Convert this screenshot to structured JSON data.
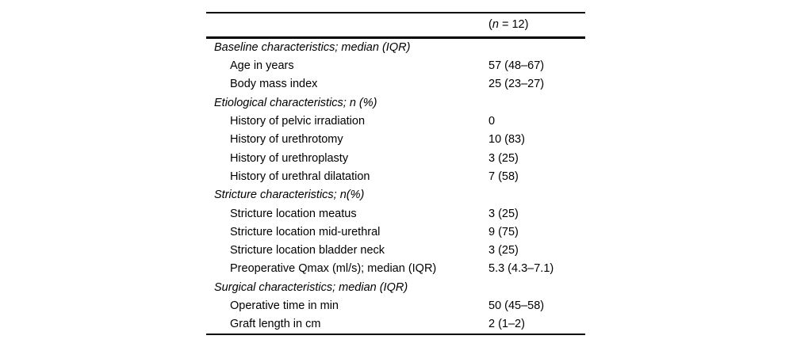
{
  "colors": {
    "background": "#ffffff",
    "text": "#000000",
    "rule": "#000000"
  },
  "table": {
    "header": {
      "open": "(",
      "n_symbol": "n",
      "rest": " = 12)"
    },
    "rows": [
      {
        "type": "section",
        "label": "Baseline characteristics; median (IQR)",
        "value": ""
      },
      {
        "type": "item",
        "label": "Age in years",
        "value": "57 (48–67)"
      },
      {
        "type": "item",
        "label": "Body mass index",
        "value": "25 (23–27)"
      },
      {
        "type": "section",
        "label": "Etiological characteristics; n (%)",
        "value": ""
      },
      {
        "type": "item",
        "label": "History of pelvic irradiation",
        "value": "0"
      },
      {
        "type": "item",
        "label": "History of urethrotomy",
        "value": "10 (83)"
      },
      {
        "type": "item",
        "label": "History of urethroplasty",
        "value": "3 (25)"
      },
      {
        "type": "item",
        "label": "History of urethral dilatation",
        "value": "7 (58)"
      },
      {
        "type": "section",
        "label": "Stricture characteristics; n(%)",
        "value": ""
      },
      {
        "type": "item",
        "label": "Stricture location meatus",
        "value": "3 (25)"
      },
      {
        "type": "item",
        "label": "Stricture location mid-urethral",
        "value": "9 (75)"
      },
      {
        "type": "item",
        "label": "Stricture location bladder neck",
        "value": "3 (25)"
      },
      {
        "type": "item",
        "label": "Preoperative Qmax (ml/s); median (IQR)",
        "value": "5.3 (4.3–7.1)"
      },
      {
        "type": "section",
        "label": "Surgical characteristics; median (IQR)",
        "value": ""
      },
      {
        "type": "item",
        "label": "Operative time in min",
        "value": "50 (45–58)"
      },
      {
        "type": "item",
        "label": "Graft length in cm",
        "value": "2 (1–2)"
      }
    ]
  }
}
